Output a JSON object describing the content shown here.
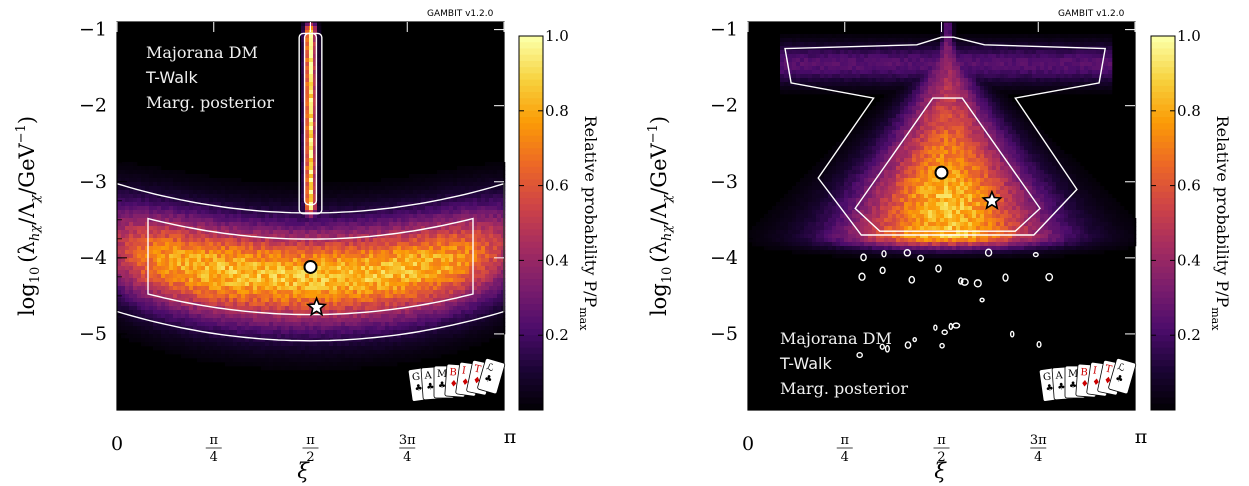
{
  "version_label": "GAMBIT v1.2.0",
  "colors": {
    "background": "#000000",
    "contour": "#ffffff",
    "colormap": [
      "#000000",
      "#1a0433",
      "#4b0c6b",
      "#7a1d6d",
      "#a52c60",
      "#cf4446",
      "#ed6925",
      "#fb9b06",
      "#f7d13d",
      "#fcffa4"
    ]
  },
  "chart_data": [
    {
      "type": "heatmap",
      "panel": "left",
      "xlabel": "ξ",
      "ylabel_main": "log",
      "ylabel_sub": "10",
      "ylabel_rest": "(λ",
      "ylabel_h": "hχ",
      "ylabel_mid": "/Λ",
      "ylabel_chi": "χ",
      "ylabel_unit": "/GeV",
      "ylabel_exp": "−1",
      "ylabel_close": ")",
      "xlim": [
        0,
        3.14159
      ],
      "ylim": [
        -6,
        -0.9
      ],
      "xticks": [
        {
          "value": 0,
          "label": "0"
        },
        {
          "value": 0.7854,
          "num": "π",
          "den": "4"
        },
        {
          "value": 1.5708,
          "num": "π",
          "den": "2"
        },
        {
          "value": 2.3562,
          "num": "3π",
          "den": "4"
        },
        {
          "value": 3.14159,
          "label": "π"
        }
      ],
      "yticks": [
        {
          "value": -1,
          "label": "−1"
        },
        {
          "value": -2,
          "label": "−2"
        },
        {
          "value": -3,
          "label": "−3"
        },
        {
          "value": -4,
          "label": "−4"
        },
        {
          "value": -5,
          "label": "−5"
        }
      ],
      "legend_lines": [
        "Majorana DM",
        "T-Walk",
        "Marg. posterior"
      ],
      "legend_placement": "top-left",
      "colorbar": {
        "label": "Relative probability P/P",
        "label_sub": "max",
        "range": [
          0,
          1
        ],
        "ticks": [
          {
            "value": 0.2,
            "label": "0.2"
          },
          {
            "value": 0.4,
            "label": "0.4"
          },
          {
            "value": 0.6,
            "label": "0.6"
          },
          {
            "value": 0.8,
            "label": "0.8"
          },
          {
            "value": 1.0,
            "label": "1.0"
          }
        ]
      },
      "features": [
        {
          "kind": "band",
          "x_center": 1.5708,
          "y_center": -4.25,
          "x_halfwidth": 1.7,
          "y_halfwidth": 0.8,
          "curvature": 0.45,
          "peak": 0.85
        },
        {
          "kind": "strip",
          "x_center": 1.5708,
          "y_range": [
            -3.3,
            -1.05
          ],
          "x_halfwidth": 0.04,
          "peak": 0.95
        }
      ],
      "best_fit_circle": {
        "x": 1.5708,
        "y": -4.12
      },
      "posterior_star": {
        "x": 1.62,
        "y": -4.65
      }
    },
    {
      "type": "heatmap",
      "panel": "right",
      "xlabel": "ξ",
      "ylabel_main": "log",
      "ylabel_sub": "10",
      "ylabel_rest": "(λ",
      "ylabel_h": "hχ",
      "ylabel_mid": "/Λ",
      "ylabel_chi": "χ",
      "ylabel_unit": "/GeV",
      "ylabel_exp": "−1",
      "ylabel_close": ")",
      "xlim": [
        0,
        3.14159
      ],
      "ylim": [
        -6,
        -0.9
      ],
      "xticks": [
        {
          "value": 0,
          "label": "0"
        },
        {
          "value": 0.7854,
          "num": "π",
          "den": "4"
        },
        {
          "value": 1.5708,
          "num": "π",
          "den": "2"
        },
        {
          "value": 2.3562,
          "num": "3π",
          "den": "4"
        },
        {
          "value": 3.14159,
          "label": "π"
        }
      ],
      "yticks": [
        {
          "value": -1,
          "label": "−1"
        },
        {
          "value": -2,
          "label": "−2"
        },
        {
          "value": -3,
          "label": "−3"
        },
        {
          "value": -4,
          "label": "−4"
        },
        {
          "value": -5,
          "label": "−5"
        }
      ],
      "legend_lines": [
        "Majorana DM",
        "T-Walk",
        "Marg. posterior"
      ],
      "legend_placement": "bottom-left",
      "colorbar": {
        "label": "Relative probability P/P",
        "label_sub": "max",
        "range": [
          0,
          1
        ],
        "ticks": [
          {
            "value": 0.2,
            "label": "0.2"
          },
          {
            "value": 0.4,
            "label": "0.4"
          },
          {
            "value": 0.6,
            "label": "0.6"
          },
          {
            "value": 0.8,
            "label": "0.8"
          },
          {
            "value": 1.0,
            "label": "1.0"
          }
        ]
      },
      "features": [
        {
          "kind": "triangle",
          "x_center": 1.62,
          "y_apex": -1.1,
          "y_base": -3.7,
          "base_halfwidth": 0.95,
          "peak": 0.85
        },
        {
          "kind": "wings",
          "y_center": -1.45,
          "x_range": [
            0.25,
            2.95
          ],
          "peak": 0.25
        }
      ],
      "best_fit_circle": {
        "x": 1.5708,
        "y": -2.88
      },
      "posterior_star": {
        "x": 1.98,
        "y": -3.25
      }
    }
  ]
}
